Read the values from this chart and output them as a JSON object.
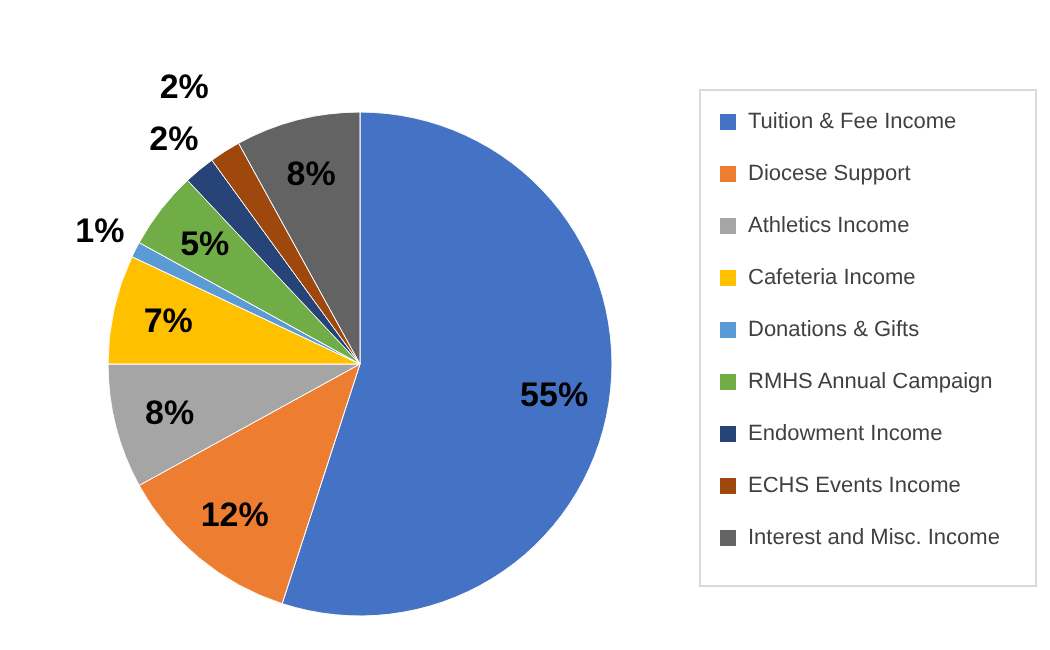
{
  "chart_data": {
    "type": "pie",
    "categories": [
      "Tuition & Fee Income",
      "Diocese Support",
      "Athletics Income",
      "Cafeteria Income",
      "Donations & Gifts",
      "RMHS Annual Campaign",
      "Endowment Income",
      "ECHS Events Income",
      "Interest and Misc. Income"
    ],
    "values": [
      55,
      12,
      8,
      7,
      1,
      5,
      2,
      2,
      8
    ],
    "value_labels": [
      "55%",
      "12%",
      "8%",
      "7%",
      "1%",
      "5%",
      "2%",
      "2%",
      "8%"
    ],
    "colors": [
      "#4472c4",
      "#ed7d31",
      "#a5a5a5",
      "#ffc000",
      "#5b9bd5",
      "#70ad47",
      "#264478",
      "#9e480e",
      "#636363"
    ],
    "legend": "right"
  }
}
